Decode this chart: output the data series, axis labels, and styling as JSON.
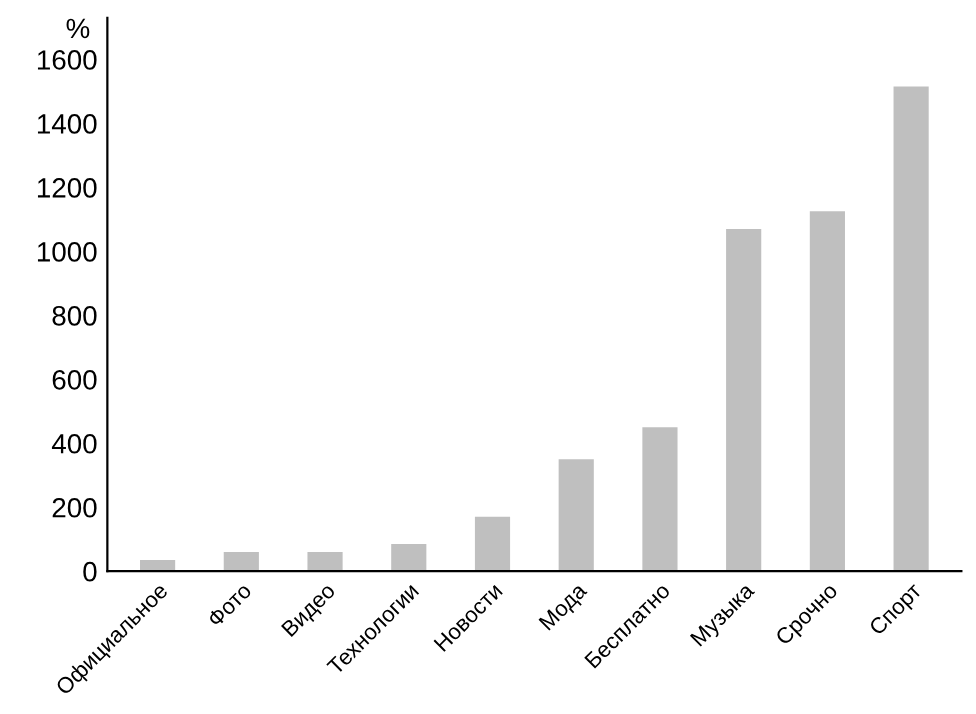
{
  "chart_data": {
    "type": "bar",
    "ylabel": "%",
    "categories": [
      "Официальное",
      "Фото",
      "Видео",
      "Технологии",
      "Новости",
      "Мода",
      "Бесплатно",
      "Музыка",
      "Срочно",
      "Спорт"
    ],
    "values": [
      35,
      60,
      60,
      85,
      170,
      350,
      450,
      1070,
      1125,
      1515
    ],
    "color": "#bfbfbf",
    "ylim": [
      0,
      1730
    ],
    "yticks": [
      0,
      200,
      400,
      600,
      800,
      1000,
      1200,
      1400,
      1600
    ],
    "grid": false,
    "legend": false
  }
}
